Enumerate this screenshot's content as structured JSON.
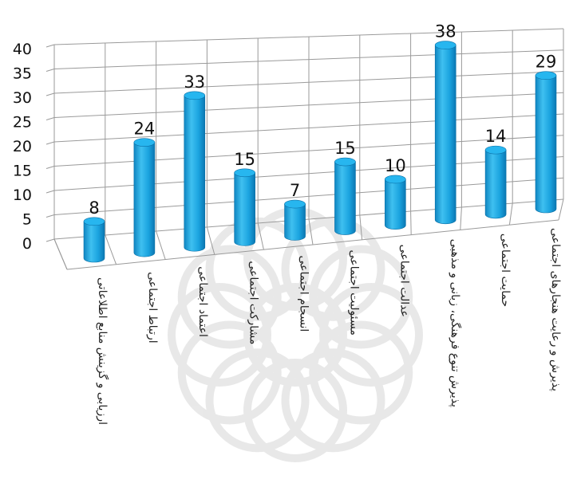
{
  "chart_data": {
    "type": "bar",
    "bar_shape": "cylinder",
    "perspective": "3d",
    "title": "",
    "xlabel": "",
    "ylabel": "",
    "ylim": [
      0,
      40
    ],
    "yticks": [
      0,
      5,
      10,
      15,
      20,
      25,
      30,
      35,
      40
    ],
    "grid": true,
    "legend": "none",
    "bar_color": "#1ea9e3",
    "categories": [
      "ارزیابی و گزینش منابع اطلاعاتی",
      "ارتباط اجتماعی",
      "اعتماد اجتماعی",
      "مشارکت اجتماعی",
      "انسجام اجتماعی",
      "مسئولیت اجتماعی",
      "عدالت اجتماعی",
      "پذیرش تنوع فرهنگی، زبانی و مذهبی",
      "حمایت اجتماعی",
      "پذیرش و رعایت هنجارهای اجتماعی"
    ],
    "values": [
      8,
      24,
      33,
      15,
      7,
      15,
      10,
      38,
      14,
      29
    ],
    "data_labels": [
      "8",
      "24",
      "33",
      "15",
      "7",
      "15",
      "10",
      "38",
      "14",
      "29"
    ]
  }
}
